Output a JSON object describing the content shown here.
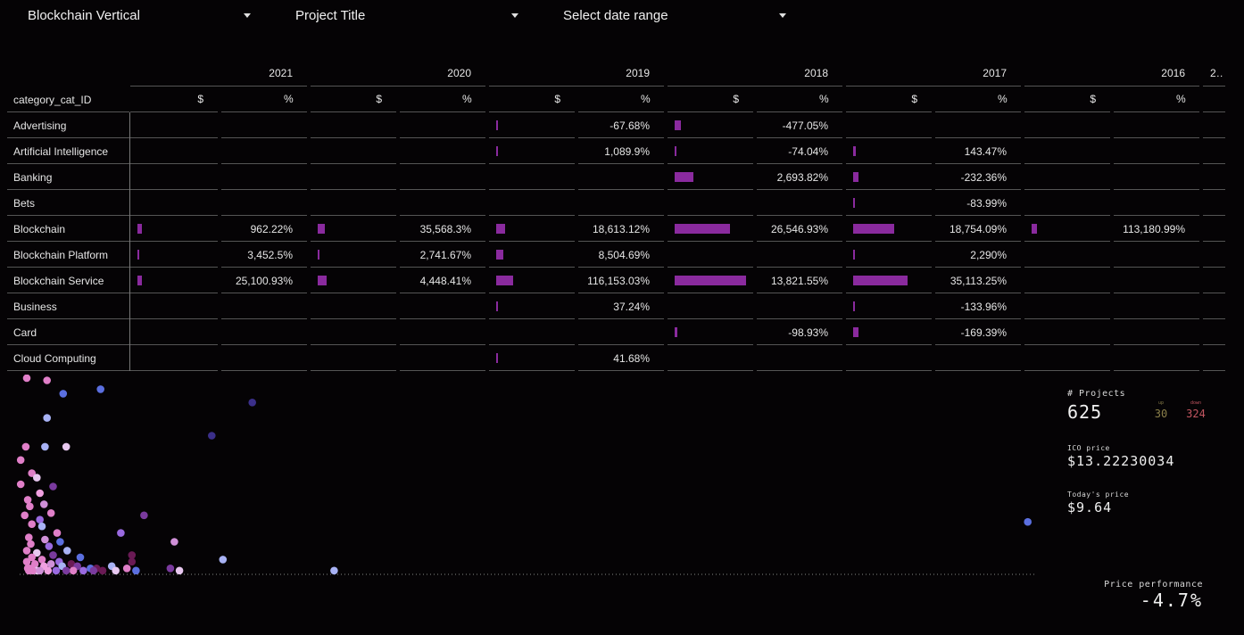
{
  "filters": [
    {
      "label": "Blockchain Vertical"
    },
    {
      "label": "Project Title"
    },
    {
      "label": "Select date range"
    }
  ],
  "table": {
    "row_header": "category_cat_ID",
    "years": [
      "2021",
      "2020",
      "2019",
      "2018",
      "2017",
      "2016",
      "2…"
    ],
    "subcols": [
      "$",
      "%"
    ],
    "rows": [
      {
        "name": "Advertising",
        "values": [
          "",
          "",
          "-67.68%",
          "-477.05%",
          "",
          ""
        ]
      },
      {
        "name": "Artificial Intelligence",
        "values": [
          "",
          "",
          "1,089.9%",
          "-74.04%",
          "143.47%",
          ""
        ]
      },
      {
        "name": "Banking",
        "values": [
          "",
          "",
          "",
          "2,693.82%",
          "-232.36%",
          ""
        ]
      },
      {
        "name": "Bets",
        "values": [
          "",
          "",
          "",
          "",
          "-83.99%",
          ""
        ]
      },
      {
        "name": "Blockchain",
        "values": [
          "962.22%",
          "35,568.3%",
          "18,613.12%",
          "26,546.93%",
          "18,754.09%",
          "113,180.99%"
        ]
      },
      {
        "name": "Blockchain Platform",
        "values": [
          "3,452.5%",
          "2,741.67%",
          "8,504.69%",
          "",
          "2,290%",
          ""
        ]
      },
      {
        "name": "Blockchain Service",
        "values": [
          "25,100.93%",
          "4,448.41%",
          "116,153.03%",
          "13,821.55%",
          "35,113.25%",
          ""
        ]
      },
      {
        "name": "Business",
        "values": [
          "",
          "",
          "37.24%",
          "",
          "-133.96%",
          ""
        ]
      },
      {
        "name": "Card",
        "values": [
          "",
          "",
          "",
          "-98.93%",
          "-169.39%",
          ""
        ]
      },
      {
        "name": "Cloud Computing",
        "values": [
          "",
          "",
          "41.68%",
          "",
          "",
          ""
        ]
      }
    ],
    "bar_fractions": [
      [
        0,
        0,
        0.02,
        0.09,
        0,
        0
      ],
      [
        0,
        0,
        0.02,
        0.03,
        0.04,
        0
      ],
      [
        0,
        0,
        0,
        0.26,
        0.07,
        0
      ],
      [
        0,
        0,
        0,
        0,
        0.02,
        0
      ],
      [
        0.06,
        0.1,
        0.12,
        0.77,
        0.57,
        0.07
      ],
      [
        0.02,
        0.03,
        0.1,
        0,
        0.02,
        0
      ],
      [
        0.06,
        0.12,
        0.24,
        1.0,
        0.76,
        0
      ],
      [
        0,
        0,
        0.02,
        0,
        0.02,
        0
      ],
      [
        0,
        0,
        0,
        0.04,
        0.07,
        0
      ],
      [
        0,
        0,
        0.02,
        0,
        0,
        0
      ]
    ]
  },
  "stats": {
    "projects_label": "# Projects",
    "projects_value": "625",
    "up_label": "up",
    "up_value": "30",
    "down_label": "down",
    "down_value": "324",
    "ico_label": "ICO price",
    "ico_value": "$13.22230034",
    "today_label": "Today's price",
    "today_value": "$9.64",
    "perf_label": "Price performance",
    "perf_value": "-4.7%"
  },
  "colors": {
    "bar": "#8a2a9e",
    "up": "#8a7f4a",
    "down": "#c25560",
    "point_palette": [
      "#e07fc8",
      "#5b6fe0",
      "#a8b2f5",
      "#e8c8f0",
      "#7a3a9e",
      "#3b2f8a",
      "#6a1a55",
      "#f0a0e0",
      "#d090d8",
      "#9a6ae0"
    ]
  },
  "chart_data": {
    "type": "scatter",
    "title": "",
    "xlabel": "",
    "ylabel": "",
    "grid": false,
    "reference_line": "dotted horizontal baseline",
    "points": [
      {
        "x": 0.0,
        "y": 100,
        "c": 0
      },
      {
        "x": 2.0,
        "y": 99,
        "c": 0
      },
      {
        "x": 3.6,
        "y": 93,
        "c": 1
      },
      {
        "x": 7.3,
        "y": 95,
        "c": 1
      },
      {
        "x": 22.3,
        "y": 89,
        "c": 5
      },
      {
        "x": 2.0,
        "y": 82,
        "c": 2
      },
      {
        "x": 18.3,
        "y": 74,
        "c": 5
      },
      {
        "x": -0.1,
        "y": 69,
        "c": 0
      },
      {
        "x": 1.8,
        "y": 69,
        "c": 2
      },
      {
        "x": 3.9,
        "y": 69,
        "c": 3
      },
      {
        "x": -0.6,
        "y": 63,
        "c": 0
      },
      {
        "x": 0.5,
        "y": 57,
        "c": 0
      },
      {
        "x": 1.0,
        "y": 55,
        "c": 3
      },
      {
        "x": -0.6,
        "y": 52,
        "c": 0
      },
      {
        "x": 2.6,
        "y": 51,
        "c": 4
      },
      {
        "x": 1.3,
        "y": 48,
        "c": 7
      },
      {
        "x": 0.1,
        "y": 45,
        "c": 0
      },
      {
        "x": 1.7,
        "y": 43,
        "c": 8
      },
      {
        "x": 0.3,
        "y": 42,
        "c": 0
      },
      {
        "x": 2.4,
        "y": 39,
        "c": 0
      },
      {
        "x": -0.2,
        "y": 38,
        "c": 0
      },
      {
        "x": 1.3,
        "y": 36,
        "c": 9
      },
      {
        "x": 11.6,
        "y": 38,
        "c": 4
      },
      {
        "x": 0.5,
        "y": 34,
        "c": 0
      },
      {
        "x": 1.5,
        "y": 33,
        "c": 2
      },
      {
        "x": 9.3,
        "y": 30,
        "c": 9
      },
      {
        "x": 3.0,
        "y": 30,
        "c": 0
      },
      {
        "x": 0.2,
        "y": 28,
        "c": 0
      },
      {
        "x": 1.8,
        "y": 27,
        "c": 8
      },
      {
        "x": 3.3,
        "y": 26,
        "c": 1
      },
      {
        "x": 14.6,
        "y": 26,
        "c": 8
      },
      {
        "x": 0.4,
        "y": 25,
        "c": 0
      },
      {
        "x": 2.2,
        "y": 24,
        "c": 9
      },
      {
        "x": 4.0,
        "y": 22,
        "c": 2
      },
      {
        "x": 0.0,
        "y": 22,
        "c": 0
      },
      {
        "x": 1.0,
        "y": 21,
        "c": 3
      },
      {
        "x": 10.4,
        "y": 20,
        "c": 6
      },
      {
        "x": 2.6,
        "y": 20,
        "c": 4
      },
      {
        "x": 5.3,
        "y": 19,
        "c": 1
      },
      {
        "x": 0.5,
        "y": 19,
        "c": 0
      },
      {
        "x": 1.5,
        "y": 18,
        "c": 0
      },
      {
        "x": 3.2,
        "y": 17,
        "c": 9
      },
      {
        "x": 19.4,
        "y": 18,
        "c": 2
      },
      {
        "x": 0.0,
        "y": 17,
        "c": 0
      },
      {
        "x": 2.4,
        "y": 16,
        "c": 8
      },
      {
        "x": 4.4,
        "y": 16,
        "c": 6
      },
      {
        "x": 10.4,
        "y": 17,
        "c": 6
      },
      {
        "x": 0.8,
        "y": 16,
        "c": 0
      },
      {
        "x": 1.7,
        "y": 15,
        "c": 7
      },
      {
        "x": 3.5,
        "y": 15,
        "c": 2
      },
      {
        "x": 5.0,
        "y": 15,
        "c": 4
      },
      {
        "x": 0.3,
        "y": 14,
        "c": 0
      },
      {
        "x": 6.3,
        "y": 14,
        "c": 1
      },
      {
        "x": 8.4,
        "y": 15,
        "c": 2
      },
      {
        "x": 0.1,
        "y": 14,
        "c": 0
      },
      {
        "x": 1.0,
        "y": 13,
        "c": 3
      },
      {
        "x": 2.9,
        "y": 13,
        "c": 9
      },
      {
        "x": 4.6,
        "y": 13,
        "c": 0
      },
      {
        "x": 6.9,
        "y": 14,
        "c": 6
      },
      {
        "x": 9.9,
        "y": 14,
        "c": 0
      },
      {
        "x": 14.2,
        "y": 14,
        "c": 4
      },
      {
        "x": 0.6,
        "y": 13,
        "c": 0
      },
      {
        "x": 2.1,
        "y": 13,
        "c": 7
      },
      {
        "x": 3.9,
        "y": 13,
        "c": 4
      },
      {
        "x": 7.5,
        "y": 13,
        "c": 6
      },
      {
        "x": 8.8,
        "y": 13,
        "c": 3
      },
      {
        "x": 10.8,
        "y": 13,
        "c": 1
      },
      {
        "x": 0.2,
        "y": 13,
        "c": 0
      },
      {
        "x": 1.3,
        "y": 13,
        "c": 8
      },
      {
        "x": 5.6,
        "y": 13,
        "c": 9
      },
      {
        "x": 6.6,
        "y": 13,
        "c": 4
      },
      {
        "x": 15.1,
        "y": 13,
        "c": 3
      },
      {
        "x": 30.4,
        "y": 13,
        "c": 2
      },
      {
        "x": 99.0,
        "y": 35,
        "c": 1
      }
    ]
  }
}
